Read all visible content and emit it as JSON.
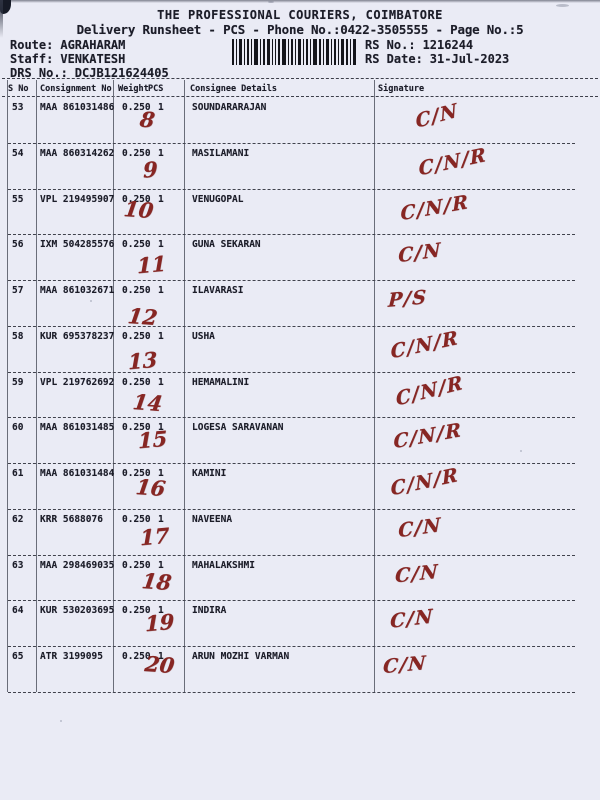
{
  "header": {
    "company": "THE PROFESSIONAL COURIERS, COIMBATORE",
    "title_line": "Delivery Runsheet - PCS - Phone No.:0422-3505555 - Page No.:5",
    "route_label": "Route:",
    "route_value": "AGRAHARAM",
    "staff_label": "Staff:",
    "staff_value": "VENKATESH",
    "drs_label": "DRS No.:",
    "drs_value": "DCJB121624405",
    "rs_no_label": "RS No.:",
    "rs_no_value": "1216244",
    "rs_date_label": "RS Date:",
    "rs_date_value": "31-Jul-2023",
    "barcode_icon": "barcode-icon"
  },
  "colors": {
    "paper": "#eaebf5",
    "ink": "#1c1d28",
    "handwriting_ink": "#872623"
  },
  "table": {
    "headers": {
      "s_no": "S No",
      "consignment_no": "Consignment No",
      "weight": "Weight",
      "pcs": "PCS",
      "consignee": "Consignee Details",
      "signature": "Signature"
    },
    "rows": [
      {
        "s_no": "53",
        "consignment_no": "MAA 861031486",
        "weight": "0.250",
        "pcs": "1",
        "consignee": "SOUNDARARAJAN",
        "delivery_number": "8",
        "signature_mark": "C/N"
      },
      {
        "s_no": "54",
        "consignment_no": "MAA 860314262",
        "weight": "0.250",
        "pcs": "1",
        "consignee": "MASILAMANI",
        "delivery_number": "9",
        "signature_mark": "C/N/R"
      },
      {
        "s_no": "55",
        "consignment_no": "VPL 219495907",
        "weight": "0.250",
        "pcs": "1",
        "consignee": "VENUGOPAL",
        "delivery_number": "10",
        "signature_mark": "C/N/R"
      },
      {
        "s_no": "56",
        "consignment_no": "IXM 504285576",
        "weight": "0.250",
        "pcs": "1",
        "consignee": "GUNA SEKARAN",
        "delivery_number": "11",
        "signature_mark": "C/N"
      },
      {
        "s_no": "57",
        "consignment_no": "MAA 861032671",
        "weight": "0.250",
        "pcs": "1",
        "consignee": "ILAVARASI",
        "delivery_number": "12",
        "signature_mark": "P/S"
      },
      {
        "s_no": "58",
        "consignment_no": "KUR 695378237",
        "weight": "0.250",
        "pcs": "1",
        "consignee": "USHA",
        "delivery_number": "13",
        "signature_mark": "C/N/R"
      },
      {
        "s_no": "59",
        "consignment_no": "VPL 219762692",
        "weight": "0.250",
        "pcs": "1",
        "consignee": "HEMAMALINI",
        "delivery_number": "14",
        "signature_mark": "C/N/R"
      },
      {
        "s_no": "60",
        "consignment_no": "MAA 861031485",
        "weight": "0.250",
        "pcs": "1",
        "consignee": "LOGESA SARAVANAN",
        "delivery_number": "15",
        "signature_mark": "C/N/R"
      },
      {
        "s_no": "61",
        "consignment_no": "MAA 861031484",
        "weight": "0.250",
        "pcs": "1",
        "consignee": "KAMINI",
        "delivery_number": "16",
        "signature_mark": "C/N/R"
      },
      {
        "s_no": "62",
        "consignment_no": "KRR 5688076",
        "weight": "0.250",
        "pcs": "1",
        "consignee": "NAVEENA",
        "delivery_number": "17",
        "signature_mark": "C/N"
      },
      {
        "s_no": "63",
        "consignment_no": "MAA 298469035",
        "weight": "0.250",
        "pcs": "1",
        "consignee": "MAHALAKSHMI",
        "delivery_number": "18",
        "signature_mark": "C/N"
      },
      {
        "s_no": "64",
        "consignment_no": "KUR 530203695",
        "weight": "0.250",
        "pcs": "1",
        "consignee": "INDIRA",
        "delivery_number": "19",
        "signature_mark": "C/N"
      },
      {
        "s_no": "65",
        "consignment_no": "ATR 3199095",
        "weight": "0.250",
        "pcs": "1",
        "consignee": "ARUN MOZHI VARMAN",
        "delivery_number": "20",
        "signature_mark": "C/N"
      }
    ]
  }
}
